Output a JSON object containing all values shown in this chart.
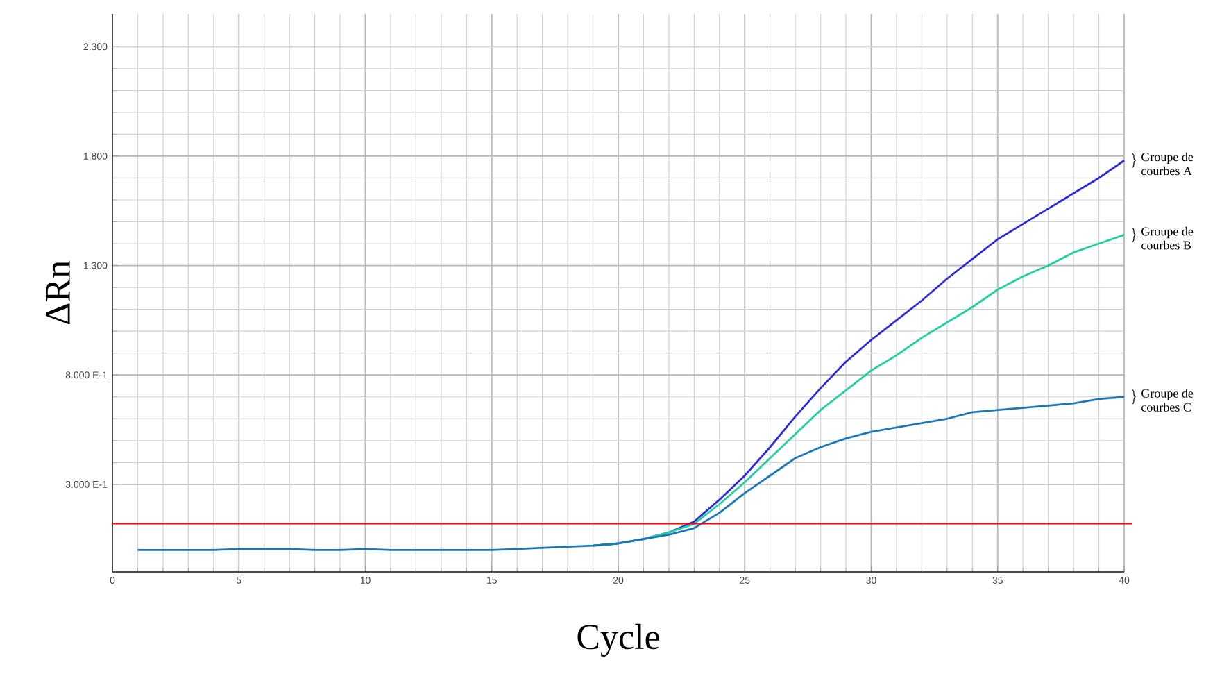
{
  "chart_data": {
    "type": "line",
    "xlabel": "Cycle",
    "ylabel": "ΔRn",
    "x": [
      1,
      2,
      3,
      4,
      5,
      6,
      7,
      8,
      9,
      10,
      11,
      12,
      13,
      14,
      15,
      16,
      17,
      18,
      19,
      20,
      21,
      22,
      23,
      24,
      25,
      26,
      27,
      28,
      29,
      30,
      31,
      32,
      33,
      34,
      35,
      36,
      37,
      38,
      39,
      40
    ],
    "series": [
      {
        "name": "Groupe de courbes A",
        "color": "#2a2ae0",
        "values": [
          null,
          null,
          null,
          null,
          null,
          null,
          null,
          null,
          null,
          null,
          null,
          null,
          null,
          null,
          null,
          null,
          null,
          null,
          0.02,
          0.03,
          0.05,
          0.08,
          0.13,
          0.23,
          0.34,
          0.47,
          0.61,
          0.74,
          0.86,
          0.96,
          1.05,
          1.14,
          1.24,
          1.33,
          1.42,
          1.49,
          1.56,
          1.63,
          1.7,
          1.78
        ]
      },
      {
        "name": "Groupe de courbes B",
        "color": "#20d0a0",
        "values": [
          null,
          null,
          null,
          null,
          null,
          null,
          null,
          null,
          null,
          null,
          null,
          null,
          null,
          null,
          null,
          null,
          null,
          null,
          0.02,
          0.03,
          0.05,
          0.08,
          0.12,
          0.21,
          0.31,
          0.42,
          0.53,
          0.64,
          0.73,
          0.82,
          0.89,
          0.97,
          1.04,
          1.11,
          1.19,
          1.25,
          1.3,
          1.36,
          1.4,
          1.44
        ]
      },
      {
        "name": "Groupe de courbes C",
        "color": "#1a78b8",
        "values": [
          0,
          0,
          0,
          0,
          0.005,
          0.005,
          0.005,
          0,
          0,
          0.005,
          0,
          0,
          0,
          0,
          0,
          0.005,
          0.01,
          0.015,
          0.02,
          0.03,
          0.05,
          0.07,
          0.1,
          0.17,
          0.26,
          0.34,
          0.42,
          0.47,
          0.51,
          0.54,
          0.56,
          0.58,
          0.6,
          0.63,
          0.64,
          0.65,
          0.66,
          0.67,
          0.69,
          0.7
        ]
      }
    ],
    "xlim": [
      0,
      40
    ],
    "xticks": [
      0,
      5,
      10,
      15,
      20,
      25,
      30,
      35,
      40
    ],
    "ylim": [
      -0.1,
      2.45
    ],
    "yticks": [
      {
        "value": 0.3,
        "label": "3.000 E-1"
      },
      {
        "value": 0.8,
        "label": "8.000 E-1"
      },
      {
        "value": 1.3,
        "label": "1.300"
      },
      {
        "value": 1.8,
        "label": "1.800"
      },
      {
        "value": 2.3,
        "label": "2.300"
      }
    ],
    "ref_lines": [
      {
        "axis": "y",
        "value": 0.12,
        "color": "#ff0000"
      }
    ],
    "grid": true,
    "legend": false,
    "marker": "none",
    "line_style": "solid"
  }
}
